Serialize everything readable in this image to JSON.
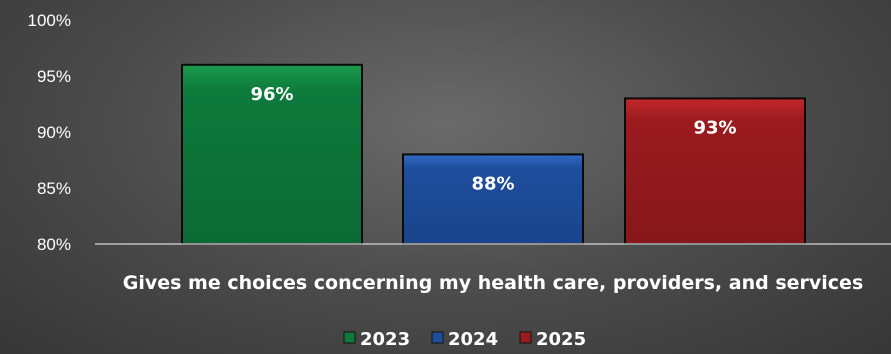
{
  "chart_data": {
    "type": "bar",
    "categories": [
      "Gives me choices concerning my health care, providers, and services"
    ],
    "series": [
      {
        "name": "2023",
        "values": [
          96
        ],
        "label": "96%",
        "color": "#0e7a3c"
      },
      {
        "name": "2024",
        "values": [
          88
        ],
        "label": "88%",
        "color": "#1f4e9e"
      },
      {
        "name": "2025",
        "values": [
          93
        ],
        "label": "93%",
        "color": "#9b1b1f"
      }
    ],
    "ylim": [
      80,
      100
    ],
    "yticks": [
      80,
      85,
      90,
      95,
      100
    ],
    "ytick_labels": [
      "80%",
      "85%",
      "90%",
      "95%",
      "100%"
    ],
    "grid": false,
    "legend_position": "bottom"
  }
}
